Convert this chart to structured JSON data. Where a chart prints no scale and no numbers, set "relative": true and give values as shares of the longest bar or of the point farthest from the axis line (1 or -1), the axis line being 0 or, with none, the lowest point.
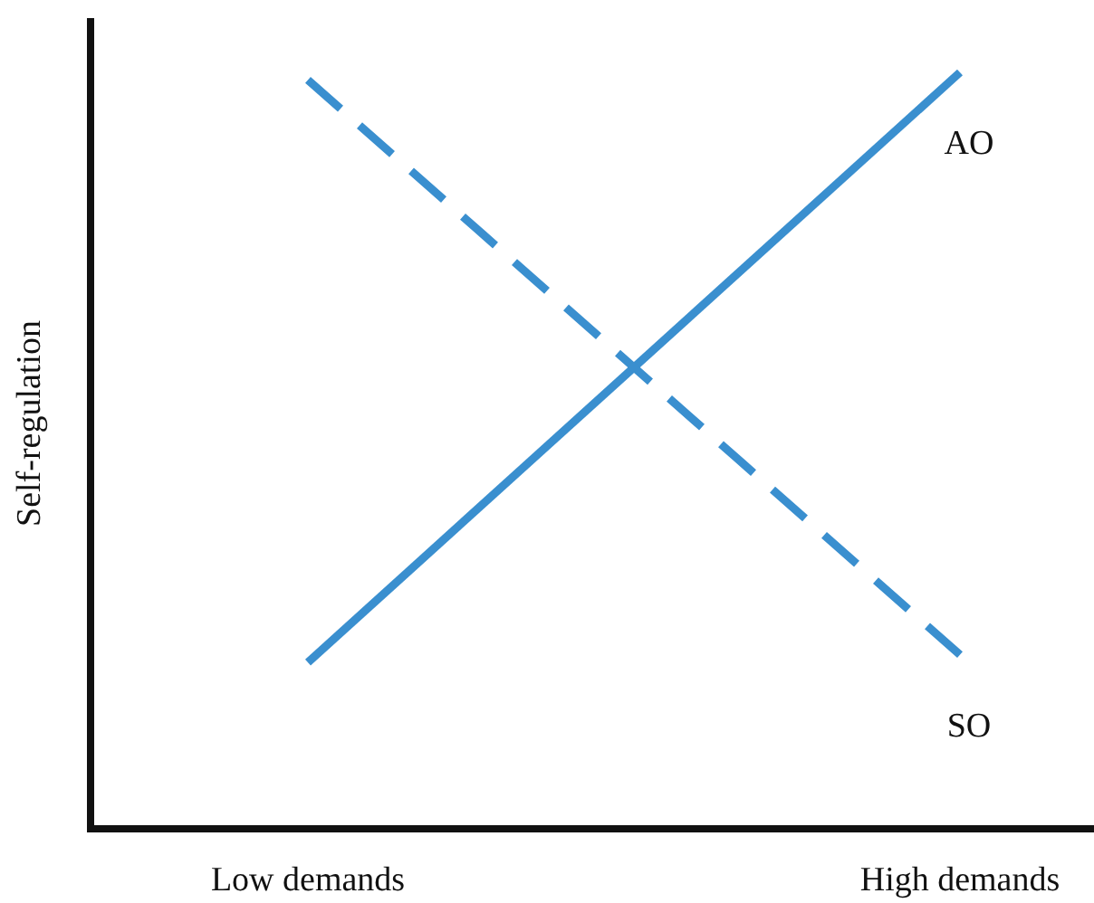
{
  "chart_data": {
    "type": "line",
    "relative": true,
    "xlabel": null,
    "ylabel": "Self-regulation",
    "categories": [
      "Low demands",
      "High demands"
    ],
    "series": [
      {
        "name": "AO",
        "color": "#3a8fcf",
        "line_style": "solid",
        "values": [
          0.22,
          1
        ]
      },
      {
        "name": "SO",
        "color": "#3a8fcf",
        "line_style": "dashed",
        "values": [
          0.99,
          0.23
        ]
      }
    ]
  }
}
